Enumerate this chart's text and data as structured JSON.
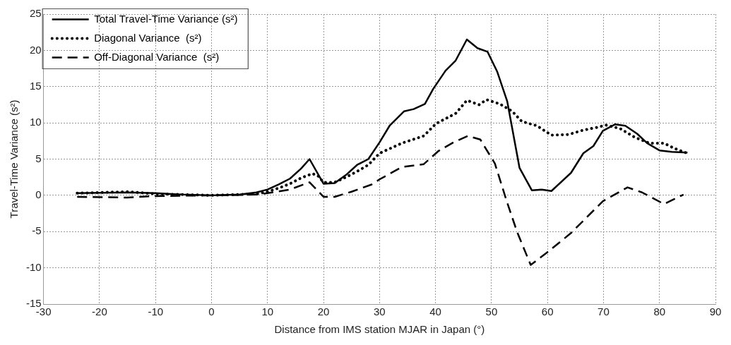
{
  "chart_data": {
    "type": "line",
    "xlabel": "Distance from IMS station MJAR in Japan (°)",
    "ylabel": "Travel-Time Variance (s²)",
    "xlim": [
      -30,
      90
    ],
    "xticks": [
      -30,
      -20,
      -10,
      0,
      10,
      20,
      30,
      40,
      50,
      60,
      70,
      80,
      90
    ],
    "ylim": [
      -15,
      25
    ],
    "yticks": [
      -15,
      -10,
      -5,
      0,
      5,
      10,
      15,
      20,
      25
    ],
    "grid": true,
    "legend": "top left",
    "marker": "none",
    "series": [
      {
        "name": "Total Travel-Time Variance (s²)",
        "color": "#000000",
        "line_style": "solid",
        "x": [
          -24,
          -15,
          -10,
          -5,
          0,
          5,
          8,
          10,
          12,
          14,
          16,
          17.5,
          20,
          22,
          24,
          26,
          28,
          30,
          31.8,
          34.4,
          36.1,
          38.1,
          39.6,
          41.8,
          43.6,
          45.6,
          47.5,
          49.3,
          51,
          52.8,
          55,
          57.2,
          59,
          60.7,
          64.2,
          66.4,
          68.2,
          69.9,
          72.1,
          73.9,
          76,
          77.8,
          80,
          82.2,
          85
        ],
        "values": [
          0.3,
          0.4,
          0.3,
          0.1,
          0,
          0.1,
          0.4,
          0.8,
          1.5,
          2.3,
          3.7,
          5,
          1.6,
          1.7,
          2.8,
          4.2,
          5,
          7.3,
          9.6,
          11.6,
          11.9,
          12.6,
          14.7,
          17.2,
          18.6,
          21.5,
          20.3,
          19.8,
          17.1,
          13,
          3.8,
          0.7,
          0.8,
          0.6,
          3.1,
          5.8,
          6.8,
          8.9,
          9.8,
          9.6,
          8.5,
          7.2,
          6.2,
          6,
          5.9
        ]
      },
      {
        "name": "Diagonal Variance  (s²)",
        "color": "#000000",
        "line_style": "dotted",
        "x": [
          -24,
          -15,
          -10,
          0,
          8,
          10,
          12,
          14,
          16,
          18,
          19,
          20,
          22,
          24,
          26,
          28,
          30,
          34,
          37.9,
          40.1,
          43.6,
          45.6,
          47.8,
          49.1,
          51.5,
          53.7,
          55.4,
          58.1,
          60.7,
          63.8,
          66.4,
          69,
          70.4,
          73,
          75.6,
          78.2,
          80.8,
          82.6,
          85
        ],
        "values": [
          0.3,
          0.5,
          0.2,
          0,
          0.2,
          0.5,
          1,
          1.6,
          2.4,
          3,
          2.7,
          1.8,
          1.8,
          2.5,
          3.3,
          4.2,
          5.8,
          7.2,
          8.2,
          9.9,
          11.3,
          13.1,
          12.5,
          13.2,
          12.6,
          11.6,
          10.2,
          9.6,
          8.3,
          8.4,
          9,
          9.4,
          9.7,
          9.2,
          8,
          7.2,
          7.2,
          6.5,
          5.8
        ]
      },
      {
        "name": "Off-Diagonal Variance  (s²)",
        "color": "#000000",
        "line_style": "dashed",
        "x": [
          -24,
          -15,
          -10,
          0,
          8,
          10,
          14,
          17.5,
          20,
          22,
          25,
          28.6,
          30,
          34,
          37.9,
          40.5,
          43.2,
          45.8,
          48,
          50.6,
          52.8,
          54.6,
          57,
          59.9,
          64.2,
          69.9,
          74.3,
          76.9,
          80.8,
          84.3
        ],
        "values": [
          -0.2,
          -0.3,
          -0.1,
          0,
          0.1,
          0.3,
          0.8,
          1.8,
          -0.2,
          -0.2,
          0.5,
          1.5,
          2.2,
          3.9,
          4.3,
          6.1,
          7.3,
          8.2,
          7.7,
          4.4,
          -1,
          -5.1,
          -9.6,
          -7.9,
          -5.2,
          -0.8,
          1.1,
          0.4,
          -1.2,
          0.1
        ]
      }
    ]
  }
}
